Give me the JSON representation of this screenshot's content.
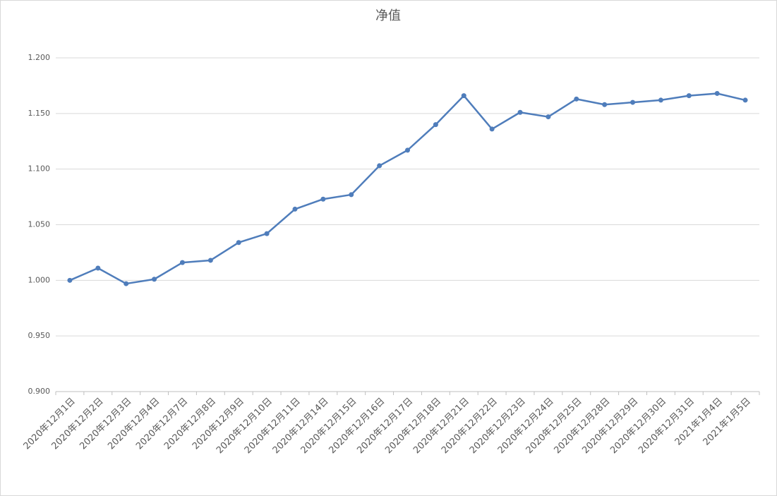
{
  "chart_data": {
    "type": "line",
    "title": "净值",
    "categories": [
      "2020年12月1日",
      "2020年12月2日",
      "2020年12月3日",
      "2020年12月4日",
      "2020年12月7日",
      "2020年12月8日",
      "2020年12月9日",
      "2020年12月10日",
      "2020年12月11日",
      "2020年12月14日",
      "2020年12月15日",
      "2020年12月16日",
      "2020年12月17日",
      "2020年12月18日",
      "2020年12月21日",
      "2020年12月22日",
      "2020年12月23日",
      "2020年12月24日",
      "2020年12月25日",
      "2020年12月28日",
      "2020年12月29日",
      "2020年12月30日",
      "2020年12月31日",
      "2021年1月4日",
      "2021年1月5日"
    ],
    "values": [
      1.0,
      1.011,
      0.997,
      1.001,
      1.016,
      1.018,
      1.034,
      1.042,
      1.064,
      1.073,
      1.077,
      1.103,
      1.117,
      1.14,
      1.166,
      1.136,
      1.151,
      1.147,
      1.163,
      1.158,
      1.16,
      1.162,
      1.166,
      1.168,
      1.162
    ],
    "color": "#4f7dbb",
    "ylim": [
      0.9,
      1.2
    ],
    "yticks": [
      {
        "value": 0.9,
        "label": "0.900"
      },
      {
        "value": 0.95,
        "label": "0.950"
      },
      {
        "value": 1.0,
        "label": "1.000"
      },
      {
        "value": 1.05,
        "label": "1.050"
      },
      {
        "value": 1.1,
        "label": "1.100"
      },
      {
        "value": 1.15,
        "label": "1.150"
      },
      {
        "value": 1.2,
        "label": "1.200"
      }
    ],
    "grid": true
  }
}
